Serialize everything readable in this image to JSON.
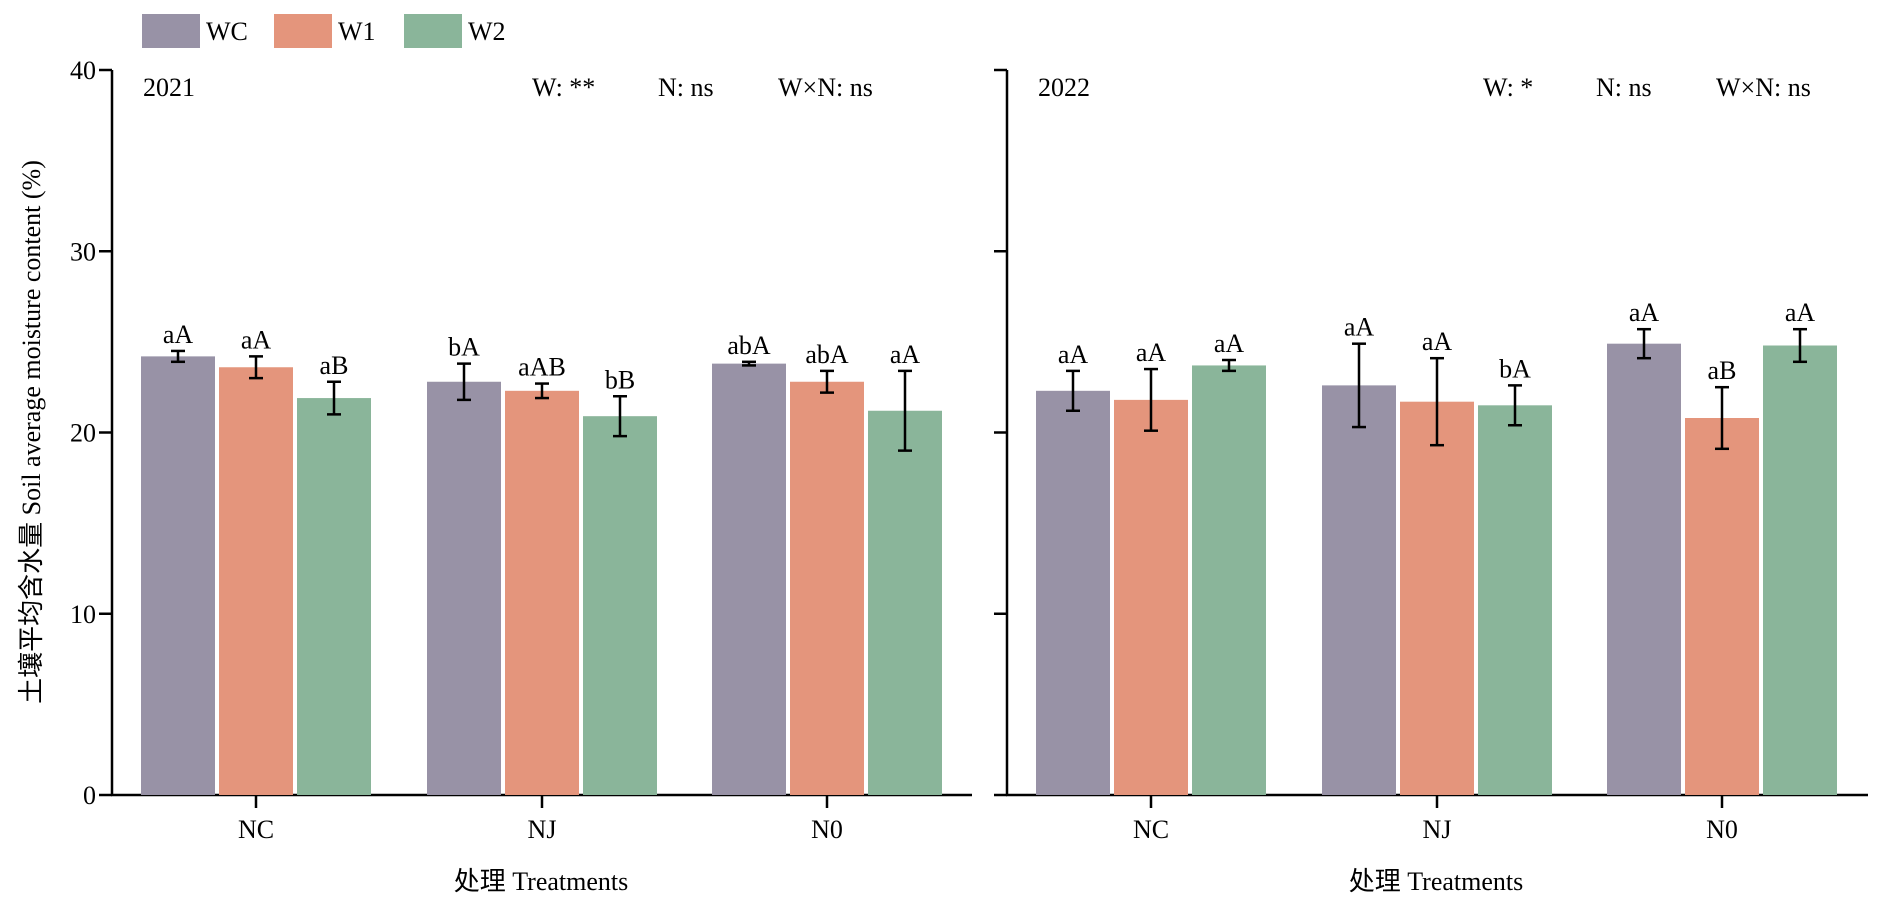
{
  "chart_data": {
    "type": "bar",
    "ylabel": "土壤平均含水量  Soil average moisture content (%)",
    "xlabel": "处理 Treatments",
    "ylim": [
      0,
      40
    ],
    "yticks": [
      "0",
      "10",
      "20",
      "30",
      "40"
    ],
    "categories": [
      "NC",
      "NJ",
      "N0"
    ],
    "legend": {
      "placement": "top-left",
      "entries": [
        "WC",
        "W1",
        "W2"
      ]
    },
    "colors": {
      "WC": "#9892A6",
      "W1": "#E4957C",
      "W2": "#8AB59A"
    },
    "panels": [
      {
        "title": "2021",
        "stats": [
          "W: **",
          "N: ns",
          "W×N: ns"
        ],
        "series": [
          {
            "name": "WC",
            "values": [
              24.2,
              22.8,
              23.8
            ],
            "errors": [
              0.3,
              1.0,
              0.1
            ],
            "labels": [
              "aA",
              "bA",
              "abA"
            ]
          },
          {
            "name": "W1",
            "values": [
              23.6,
              22.3,
              22.8
            ],
            "errors": [
              0.6,
              0.4,
              0.6
            ],
            "labels": [
              "aA",
              "aAB",
              "abA"
            ]
          },
          {
            "name": "W2",
            "values": [
              21.9,
              20.9,
              21.2
            ],
            "errors": [
              0.9,
              1.1,
              2.2
            ],
            "labels": [
              "aB",
              "bB",
              "aA"
            ]
          }
        ]
      },
      {
        "title": "2022",
        "stats": [
          "W: *",
          "N: ns",
          "W×N: ns"
        ],
        "series": [
          {
            "name": "WC",
            "values": [
              22.3,
              22.6,
              24.9
            ],
            "errors": [
              1.1,
              2.3,
              0.8
            ],
            "labels": [
              "aA",
              "aA",
              "aA"
            ]
          },
          {
            "name": "W1",
            "values": [
              21.8,
              21.7,
              20.8
            ],
            "errors": [
              1.7,
              2.4,
              1.7
            ],
            "labels": [
              "aA",
              "aA",
              "aB"
            ]
          },
          {
            "name": "W2",
            "values": [
              23.7,
              21.5,
              24.8
            ],
            "errors": [
              0.3,
              1.1,
              0.9
            ],
            "labels": [
              "aA",
              "bA",
              "aA"
            ]
          }
        ]
      }
    ]
  }
}
